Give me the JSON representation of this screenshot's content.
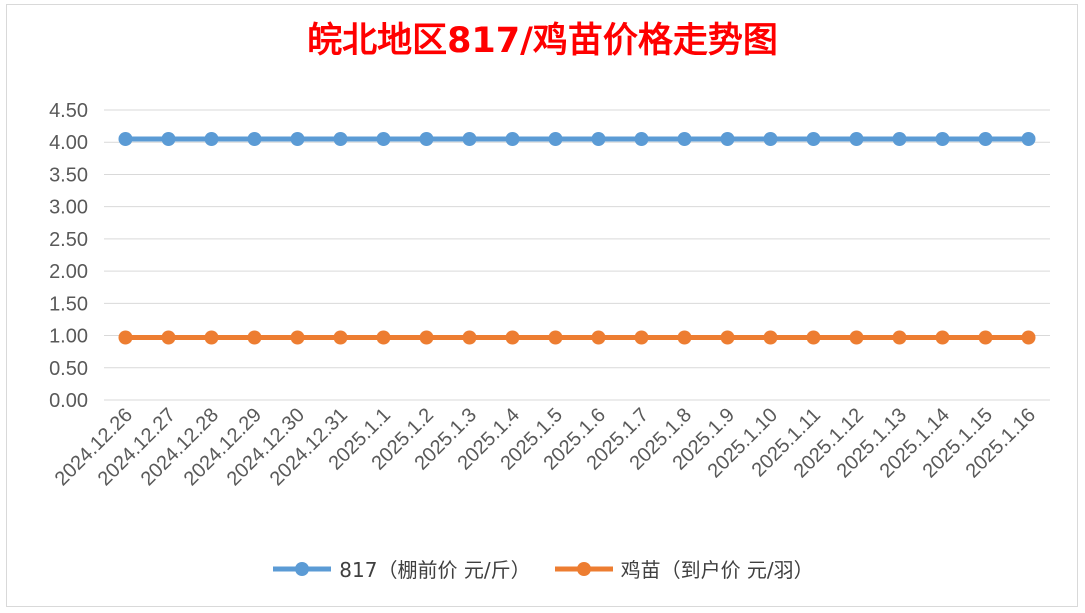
{
  "chart_data": {
    "type": "line",
    "title": "皖北地区817/鸡苗价格走势图",
    "xlabel": "",
    "ylabel": "",
    "categories": [
      "2024.12.26",
      "2024.12.27",
      "2024.12.28",
      "2024.12.29",
      "2024.12.30",
      "2024.12.31",
      "2025.1.1",
      "2025.1.2",
      "2025.1.3",
      "2025.1.4",
      "2025.1.5",
      "2025.1.6",
      "2025.1.7",
      "2025.1.8",
      "2025.1.9",
      "2025.1.10",
      "2025.1.11",
      "2025.1.12",
      "2025.1.13",
      "2025.1.14",
      "2025.1.15",
      "2025.1.16"
    ],
    "ylim": [
      0,
      4.5
    ],
    "yticks": [
      "0.00",
      "0.50",
      "1.00",
      "1.50",
      "2.00",
      "2.50",
      "3.00",
      "3.50",
      "4.00",
      "4.50"
    ],
    "grid": true,
    "legend_position": "bottom",
    "series": [
      {
        "name": "817（棚前价 元/斤）",
        "color": "#5b9bd5",
        "values": [
          4.05,
          4.05,
          4.05,
          4.05,
          4.05,
          4.05,
          4.05,
          4.05,
          4.05,
          4.05,
          4.05,
          4.05,
          4.05,
          4.05,
          4.05,
          4.05,
          4.05,
          4.05,
          4.05,
          4.05,
          4.05,
          4.05
        ]
      },
      {
        "name": "鸡苗（到户价 元/羽）",
        "color": "#ed7d31",
        "values": [
          0.97,
          0.97,
          0.97,
          0.97,
          0.97,
          0.97,
          0.97,
          0.97,
          0.97,
          0.97,
          0.97,
          0.97,
          0.97,
          0.97,
          0.97,
          0.97,
          0.97,
          0.97,
          0.97,
          0.97,
          0.97,
          0.97
        ]
      }
    ]
  }
}
